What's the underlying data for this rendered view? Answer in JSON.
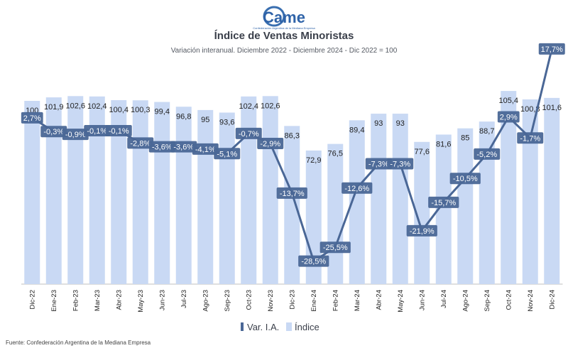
{
  "logo": {
    "text": "Came",
    "tagline": "Confederación Argentina de la Mediana Empresa"
  },
  "title": "Índice de Ventas Minoristas",
  "subtitle": "Variación interanual. Diciembre 2022 - Diciembre 2024 - Dic 2022 = 100",
  "source": "Fuente: Confederación Argentina de la Mediana Empresa",
  "colors": {
    "bar": "#c9d9f4",
    "line": "#4a6796",
    "label_bg": "#4a6796",
    "text": "#222222"
  },
  "chart_data": {
    "type": "bar",
    "categories": [
      "Dic-22",
      "Ene-23",
      "Feb-23",
      "Mar-23",
      "Abr-23",
      "May-23",
      "Jun-23",
      "Jul-23",
      "Ago-23",
      "Sep-23",
      "Oct-23",
      "Nov-23",
      "Dic-23",
      "Ene-24",
      "Feb-24",
      "Mar-24",
      "Abr-24",
      "May-24",
      "Jun-24",
      "Jul-24",
      "Ago-24",
      "Sep-24",
      "Oct-24",
      "Nov-24",
      "Dic-24"
    ],
    "series": [
      {
        "name": "Índice",
        "type": "bar",
        "values": [
          100,
          101.9,
          102.6,
          102.4,
          100.4,
          100.3,
          99.4,
          96.8,
          95,
          93.6,
          102.4,
          102.6,
          86.3,
          72.9,
          76.5,
          89.4,
          93,
          93,
          77.6,
          81.6,
          85,
          88.7,
          105.4,
          100.8,
          101.6
        ],
        "labels": [
          "100",
          "101,9",
          "102,6",
          "102,4",
          "100,4",
          "100,3",
          "99,4",
          "96,8",
          "95",
          "93,6",
          "102,4",
          "102,6",
          "86,3",
          "72,9",
          "76,5",
          "89,4",
          "93",
          "93",
          "77,6",
          "81,6",
          "85",
          "88,7",
          "105,4",
          "100,8",
          "101,6"
        ]
      },
      {
        "name": "Var. I.A.",
        "type": "line",
        "values": [
          2.7,
          -0.3,
          -0.9,
          -0.1,
          -0.1,
          -2.8,
          -3.6,
          -3.6,
          -4.1,
          -5.1,
          -0.7,
          -2.9,
          -13.7,
          -28.5,
          -25.5,
          -12.6,
          -7.3,
          -7.3,
          -21.9,
          -15.7,
          -10.5,
          -5.2,
          2.9,
          -1.7,
          17.7
        ],
        "labels": [
          "2,7%",
          "-0,3%",
          "-0,9%",
          "-0,1%",
          "-0,1%",
          "-2,8%",
          "-3,6%",
          "-3,6%",
          "-4,1%",
          "-5,1%",
          "-0,7%",
          "-2,9%",
          "-13,7%",
          "-28,5%",
          "-25,5%",
          "-12,6%",
          "-7,3%",
          "-7,3%",
          "-21,9%",
          "-15,7%",
          "-10,5%",
          "-5,2%",
          "2,9%",
          "-1,7%",
          "17,7%"
        ]
      }
    ],
    "legend": {
      "position": "bottom",
      "line_label": "Var. I.A.",
      "bar_label": "Índice"
    }
  }
}
